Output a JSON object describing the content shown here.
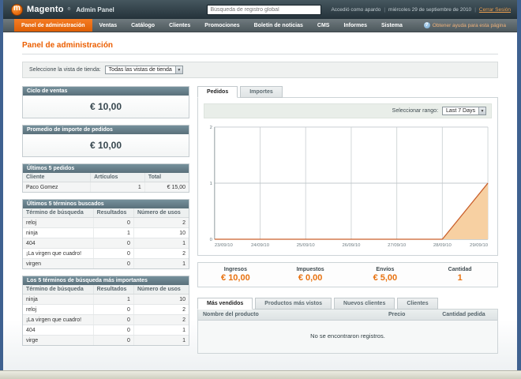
{
  "header": {
    "logo": {
      "brand": "Magento",
      "reg_mark": "®",
      "suffix": "Admin Panel"
    },
    "search": {
      "placeholder": "Búsqueda de registro global"
    },
    "user_text": "Accedió como apardo",
    "separator": "|",
    "date_text": "miércoles 29 de septiembre de 2010",
    "logout_label": "Cerrar Sesión"
  },
  "nav": {
    "items": [
      {
        "label": "Panel de administración",
        "active": true
      },
      {
        "label": "Ventas",
        "active": false
      },
      {
        "label": "Catálogo",
        "active": false
      },
      {
        "label": "Clientes",
        "active": false
      },
      {
        "label": "Promociones",
        "active": false
      },
      {
        "label": "Boletín de noticias",
        "active": false
      },
      {
        "label": "CMS",
        "active": false
      },
      {
        "label": "Informes",
        "active": false
      },
      {
        "label": "Sistema",
        "active": false
      }
    ],
    "help_icon": "?",
    "help_label": "Obtener ayuda para esta página"
  },
  "page": {
    "title": "Panel de administración",
    "store_view": {
      "label": "Seleccione la vista de tienda:",
      "value": "Todas las vistas de tienda"
    }
  },
  "left": {
    "lifetime_sales": {
      "title": "Ciclo de ventas",
      "value": "€ 10,00"
    },
    "average_orders": {
      "title": "Promedio de importe de pedidos",
      "value": "€ 10,00"
    },
    "last_orders": {
      "title": "Últimos 5 pedidos",
      "headers": [
        "Cliente",
        "Artículos",
        "Total"
      ],
      "rows": [
        [
          "Paco Gomez",
          "1",
          "€ 15,00"
        ]
      ]
    },
    "last_search_terms": {
      "title": "Últimos 5 términos buscados",
      "headers": [
        "Término de búsqueda",
        "Resultados",
        "Número de usos"
      ],
      "rows": [
        [
          "reloj",
          "0",
          "2"
        ],
        [
          "ninja",
          "1",
          "10"
        ],
        [
          "404",
          "0",
          "1"
        ],
        [
          "¡La virgen que cuadro!",
          "0",
          "2"
        ],
        [
          "virgen",
          "0",
          "1"
        ]
      ]
    },
    "top_search_terms": {
      "title": "Los 5 términos de búsqueda más importantes",
      "headers": [
        "Término de búsqueda",
        "Resultados",
        "Número de usos"
      ],
      "rows": [
        [
          "ninja",
          "1",
          "10"
        ],
        [
          "reloj",
          "0",
          "2"
        ],
        [
          "¡La virgen que cuadro!",
          "0",
          "2"
        ],
        [
          "404",
          "0",
          "1"
        ],
        [
          "virge",
          "0",
          "1"
        ]
      ]
    }
  },
  "dashboard": {
    "tabs": [
      {
        "label": "Pedidos",
        "active": true
      },
      {
        "label": "Importes",
        "active": false
      }
    ],
    "range": {
      "label": "Seleccionar rango:",
      "value": "Last 7 Days"
    },
    "stats": [
      {
        "label": "Ingresos",
        "value": "€ 10,00"
      },
      {
        "label": "Impuestos",
        "value": "€ 0,00"
      },
      {
        "label": "Envíos",
        "value": "€ 5,00"
      },
      {
        "label": "Cantidad",
        "value": "1"
      }
    ],
    "bottom_tabs": [
      {
        "label": "Más vendidos",
        "active": true
      },
      {
        "label": "Productos más vistos",
        "active": false
      },
      {
        "label": "Nuevos clientes",
        "active": false
      },
      {
        "label": "Clientes",
        "active": false
      }
    ],
    "products_table": {
      "headers": [
        "Nombre del producto",
        "Precio",
        "Cantidad pedida"
      ],
      "empty_message": "No se encontraron registros."
    }
  },
  "chart_data": {
    "type": "area",
    "title": "Pedidos - Last 7 Days",
    "x": [
      "23/09/10",
      "24/09/10",
      "25/09/10",
      "26/09/10",
      "27/09/10",
      "28/09/10",
      "29/09/10"
    ],
    "values": [
      0,
      0,
      0,
      0,
      0,
      0,
      1
    ],
    "ylim": [
      0,
      2
    ],
    "yticks": [
      0,
      1,
      2
    ],
    "grid": true,
    "line_color": "#c95f2b",
    "fill_color": "#f7d0a2"
  },
  "colors": {
    "accent_orange": "#eb5e00",
    "nav_active": "#e96d10",
    "panel_header": "#64808a",
    "stat_value": "#e87210"
  }
}
